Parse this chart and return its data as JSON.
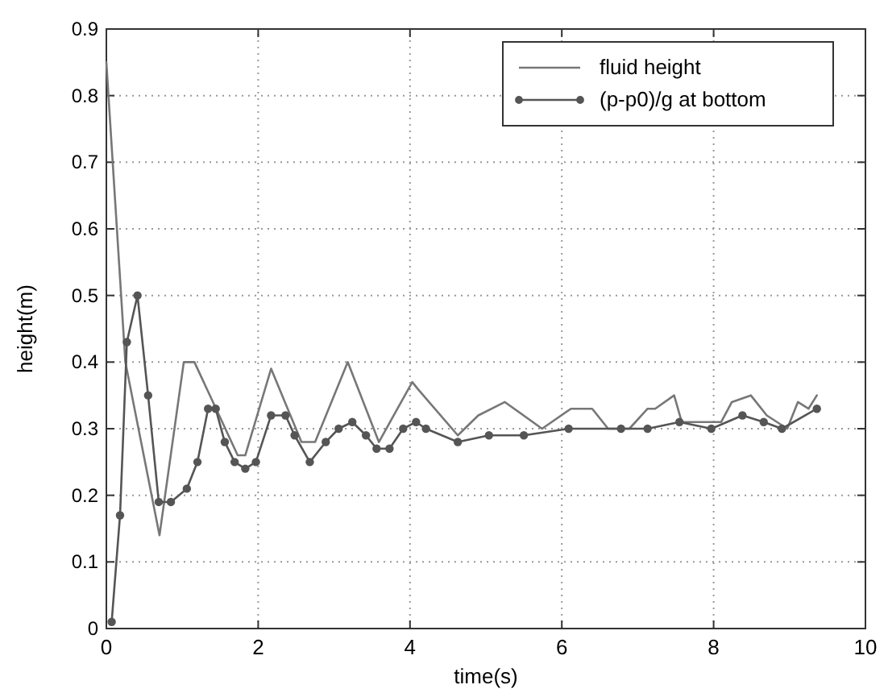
{
  "chart_data": {
    "type": "line",
    "xlabel": "time(s)",
    "ylabel": "height(m)",
    "xlim": [
      0,
      10
    ],
    "ylim": [
      0,
      0.9
    ],
    "xticks": [
      0,
      2,
      4,
      6,
      8,
      10
    ],
    "yticks": [
      0,
      0.1,
      0.2,
      0.3,
      0.4,
      0.5,
      0.6,
      0.7,
      0.8,
      0.9
    ],
    "grid": true,
    "legend": "top right",
    "line_style": "solid",
    "series": [
      {
        "name": "fluid height",
        "color": "#777777",
        "marker": "none",
        "x": [
          0,
          0.25,
          0.7,
          1.02,
          1.16,
          1.73,
          1.83,
          2.17,
          2.57,
          2.75,
          3.18,
          3.59,
          4.03,
          4.1,
          4.63,
          4.9,
          5.25,
          5.74,
          6.12,
          6.4,
          6.61,
          6.89,
          7.13,
          7.23,
          7.48,
          7.58,
          8.1,
          8.24,
          8.49,
          8.7,
          8.97,
          9.11,
          9.25,
          9.36
        ],
        "values": [
          0.85,
          0.4,
          0.14,
          0.4,
          0.4,
          0.26,
          0.26,
          0.39,
          0.28,
          0.28,
          0.4,
          0.28,
          0.37,
          0.36,
          0.29,
          0.32,
          0.34,
          0.3,
          0.33,
          0.33,
          0.3,
          0.3,
          0.33,
          0.33,
          0.35,
          0.31,
          0.31,
          0.34,
          0.35,
          0.32,
          0.3,
          0.34,
          0.33,
          0.35
        ]
      },
      {
        "name": "(p-p0)/g at bottom",
        "color": "#555555",
        "marker": "circle",
        "x": [
          0.07,
          0.18,
          0.27,
          0.41,
          0.55,
          0.69,
          0.85,
          1.06,
          1.2,
          1.34,
          1.44,
          1.56,
          1.69,
          1.83,
          1.97,
          2.17,
          2.36,
          2.48,
          2.68,
          2.89,
          3.06,
          3.24,
          3.42,
          3.56,
          3.73,
          3.91,
          4.08,
          4.21,
          4.63,
          5.04,
          5.5,
          6.09,
          6.78,
          7.13,
          7.55,
          7.97,
          8.38,
          8.66,
          8.9,
          9.36
        ],
        "values": [
          0.01,
          0.17,
          0.43,
          0.5,
          0.35,
          0.19,
          0.19,
          0.21,
          0.25,
          0.33,
          0.33,
          0.28,
          0.25,
          0.24,
          0.25,
          0.32,
          0.32,
          0.29,
          0.25,
          0.28,
          0.3,
          0.31,
          0.29,
          0.27,
          0.27,
          0.3,
          0.31,
          0.3,
          0.28,
          0.29,
          0.29,
          0.3,
          0.3,
          0.3,
          0.31,
          0.3,
          0.32,
          0.31,
          0.3,
          0.33
        ]
      }
    ]
  }
}
